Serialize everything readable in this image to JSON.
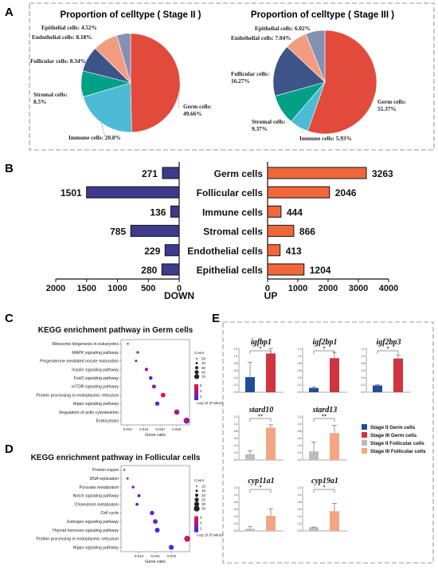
{
  "panels": {
    "a": "A",
    "b": "B",
    "c": "C",
    "d": "D",
    "e": "E"
  },
  "chart_data": [
    {
      "id": "pie-stage2",
      "type": "pie",
      "title": "Proportion of celltype ( Stage II )",
      "slices": [
        {
          "label": "Germ cells: 49.66%",
          "value": 49.66,
          "color": "#E24A3B"
        },
        {
          "label": "Immune cells: 20.8%",
          "value": 20.8,
          "color": "#4DBBD5"
        },
        {
          "label": "Stromal cells: 8.5%",
          "value": 8.5,
          "color": "#00A087"
        },
        {
          "label": "Follicular cells: 8.34%",
          "value": 8.34,
          "color": "#3C5488"
        },
        {
          "label": "Endothelial cells: 8.18%",
          "value": 8.18,
          "color": "#F39B7F"
        },
        {
          "label": "Epithelial cells: 4.52%",
          "value": 4.52,
          "color": "#8491B4"
        }
      ]
    },
    {
      "id": "pie-stage3",
      "type": "pie",
      "title": "Proportion of celltype ( Stage III )",
      "slices": [
        {
          "label": "Germ cells: 55.37%",
          "value": 55.37,
          "color": "#E24A3B"
        },
        {
          "label": "Immune cells: 5.93%",
          "value": 5.93,
          "color": "#4DBBD5"
        },
        {
          "label": "Stromal cells: 9.37%",
          "value": 9.37,
          "color": "#00A087"
        },
        {
          "label": "Follicular cells: 16.27%",
          "value": 16.27,
          "color": "#3C5488"
        },
        {
          "label": "Endothelial cells: 7.04%",
          "value": 7.04,
          "color": "#F39B7F"
        },
        {
          "label": "Epithelial cells: 6.02%",
          "value": 6.02,
          "color": "#8491B4"
        }
      ]
    },
    {
      "id": "deg-bars",
      "type": "bar",
      "categories": [
        "Germ cells",
        "Follicular cells",
        "Immune cells",
        "Stromal cells",
        "Endothelial cells",
        "Epithelial cells"
      ],
      "series": [
        {
          "name": "DOWN",
          "values": [
            271,
            1501,
            136,
            785,
            229,
            280
          ],
          "color": "#3E3A8C"
        },
        {
          "name": "UP",
          "values": [
            3263,
            2046,
            444,
            866,
            413,
            1204
          ],
          "color": "#F0683A"
        }
      ],
      "down_ticks": [
        "2000",
        "1500",
        "1000",
        "500",
        "0"
      ],
      "up_ticks": [
        "0",
        "1000",
        "2000",
        "3000",
        "4000"
      ],
      "down_xlim": [
        0,
        2000
      ],
      "up_xlim": [
        0,
        4000
      ],
      "down_label": "DOWN",
      "up_label": "UP"
    },
    {
      "id": "kegg-germ",
      "type": "scatter",
      "title": "KEGG enrichment pathway in Germ cells",
      "xlabel": "Gene ratio",
      "xlim": [
        0.008,
        0.029
      ],
      "xticks": [
        "0.010",
        "0.015",
        "0.020",
        "0.025"
      ],
      "xtick_values": [
        0.01,
        0.015,
        0.02,
        0.025
      ],
      "terms": [
        "Ribosome biogenesis in eukaryotes",
        "MAPK signaling pathway",
        "Progesterone-mediated oocyte maturation",
        "Insulin signaling pathway",
        "FoxO signaling pathway",
        "mTOR signaling pathway",
        "Protein processing in endoplasmic reticulum",
        "Hippo signaling pathway",
        "Regulation of actin cytoskeleton",
        "Endocytosis"
      ],
      "x": [
        0.0101,
        0.0131,
        0.0126,
        0.0158,
        0.0171,
        0.0181,
        0.0209,
        0.0191,
        0.0251,
        0.0281
      ],
      "count": [
        30,
        38,
        35,
        48,
        50,
        55,
        63,
        58,
        70,
        79
      ],
      "neglog10p": [
        6.2,
        5.8,
        1.2,
        5.4,
        1.5,
        4.6,
        7.8,
        2.4,
        5.2,
        4.3
      ],
      "size_legend_title": "Count",
      "size_legend": [
        "30",
        "40",
        "50",
        "60",
        "70"
      ],
      "color_legend_title": "-Log 10 (P.value)",
      "color_legend_ticks": [
        "6",
        "4",
        "2"
      ]
    },
    {
      "id": "kegg-follicular",
      "type": "scatter",
      "title": "KEGG enrichment pathway in Follicular cells",
      "xlabel": "Gene ratio",
      "xlim": [
        0.0045,
        0.0255
      ],
      "xticks": [
        "0.010",
        "0.015",
        "0.020"
      ],
      "xtick_values": [
        0.01,
        0.015,
        0.02
      ],
      "terms": [
        "Protein export",
        "DNA replication",
        "Pyruvate metabolism",
        "Notch signaling pathway",
        "Cholesterol metabolism",
        "Cell cycle",
        "Estrogen signaling pathway",
        "Thyroid hormone signaling pathway",
        "Protein processing in endoplasmic reticulum",
        "Hippo signaling pathway"
      ],
      "x": [
        0.0055,
        0.0065,
        0.0082,
        0.01,
        0.0094,
        0.014,
        0.015,
        0.0156,
        0.0248,
        0.0199
      ],
      "count": [
        11,
        13,
        17,
        19,
        18,
        27,
        29,
        30,
        38,
        31
      ],
      "neglog10p": [
        4.2,
        6.5,
        4.6,
        2.4,
        1.8,
        2.8,
        3.2,
        1.4,
        6.3,
        2.1
      ],
      "size_legend_title": "Count",
      "size_legend": [
        "10",
        "15",
        "20",
        "25",
        "30",
        "35"
      ],
      "color_legend_title": "-Log 10 (P.value)",
      "color_legend_ticks": [
        "6",
        "4",
        "2"
      ]
    },
    {
      "id": "expr-bars",
      "type": "bar",
      "genes": [
        {
          "name": "igfbp1",
          "ymax": 1.2,
          "ticks": [
            "1.2",
            "1.0",
            "0.8",
            "0.6",
            "0.4",
            "0.2",
            "0.0"
          ],
          "values": [
            0.42,
            1.08
          ],
          "errors": [
            0.42,
            0.14
          ],
          "colors": [
            "#1F4E99",
            "#D0353F"
          ],
          "sig": "*"
        },
        {
          "name": "igf2bp1",
          "ymax": 1.2,
          "ticks": [
            "1.2",
            "1.0",
            "0.8",
            "0.6",
            "0.4",
            "0.2",
            "0.0"
          ],
          "values": [
            0.12,
            0.95
          ],
          "errors": [
            0.03,
            0.16
          ],
          "colors": [
            "#1F4E99",
            "#D0353F"
          ],
          "sig": "*"
        },
        {
          "name": "igf2bp3",
          "ymax": 1.2,
          "ticks": [
            "1.2",
            "1.0",
            "0.8",
            "0.6",
            "0.4",
            "0.2",
            "0.0"
          ],
          "values": [
            0.19,
            0.94
          ],
          "errors": [
            0.02,
            0.1
          ],
          "colors": [
            "#1F4E99",
            "#D0353F"
          ],
          "sig": "*"
        },
        {
          "name": "stard10",
          "ymax": 1.2,
          "ticks": [
            "1.2",
            "1.0",
            "0.8",
            "0.6",
            "0.4",
            "0.2",
            "0.0"
          ],
          "values": [
            0.16,
            0.9
          ],
          "errors": [
            0.1,
            0.08
          ],
          "colors": [
            "#BDBDBD",
            "#F4A582"
          ],
          "sig": "**"
        },
        {
          "name": "stard13",
          "ymax": 1.2,
          "ticks": [
            "1.2",
            "1.0",
            "0.8",
            "0.6",
            "0.4",
            "0.2",
            "0.0"
          ],
          "values": [
            0.24,
            0.75
          ],
          "errors": [
            0.26,
            0.22
          ],
          "colors": [
            "#BDBDBD",
            "#F4A582"
          ],
          "sig": "**"
        },
        {
          "name": "cyp11a1",
          "ymax": 1.2,
          "ticks": [
            "1.2",
            "1.0",
            "0.8",
            "0.6",
            "0.4",
            "0.2",
            "0.0"
          ],
          "values": [
            0.06,
            0.42
          ],
          "errors": [
            0.06,
            0.2
          ],
          "colors": [
            "#BDBDBD",
            "#F4A582"
          ],
          "sig": "*"
        },
        {
          "name": "cyp19a1",
          "ymax": 1.2,
          "ticks": [
            "1.2",
            "1.0",
            "0.8",
            "0.6",
            "0.4",
            "0.2",
            "0.0"
          ],
          "values": [
            0.1,
            0.55
          ],
          "errors": [
            0.01,
            0.22
          ],
          "colors": [
            "#BDBDBD",
            "#F4A582"
          ],
          "sig": "*"
        }
      ],
      "legend": [
        {
          "label": "Stage II Germ cells",
          "color": "#1F4E99"
        },
        {
          "label": "Stage III Germ cells",
          "color": "#D0353F"
        },
        {
          "label": "Stage II Follicular cells",
          "color": "#BDBDBD"
        },
        {
          "label": "Stage III Follicular cells",
          "color": "#F4A582"
        }
      ]
    }
  ]
}
